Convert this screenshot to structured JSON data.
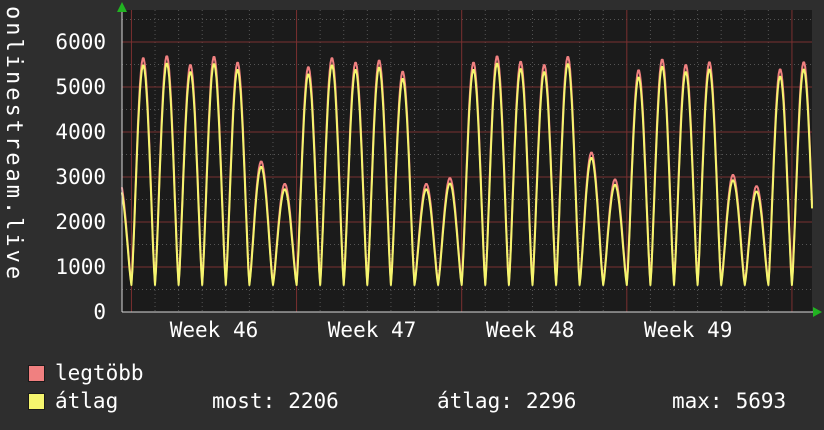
{
  "page": {
    "side_title": "onlinestream.live",
    "colors": {
      "background": "#2e2e2e",
      "plot_background": "#1b1b1b",
      "text": "#ffffff",
      "grid_major": "#7a3030",
      "grid_minor": "#555555",
      "axis": "#d8d8d8",
      "arrow": "#21b321"
    }
  },
  "legend": {
    "items": [
      {
        "label": "legtöbb",
        "color": "#f08080"
      },
      {
        "label": "átlag",
        "color": "#f5f56e"
      }
    ],
    "stats": [
      {
        "label": "most:",
        "value": "2206"
      },
      {
        "label": "átlag:",
        "value": "2296"
      },
      {
        "label": "max:",
        "value": "5693"
      }
    ]
  },
  "chart_data": {
    "type": "line",
    "title": "",
    "xlabel": "",
    "ylabel": "",
    "x_unit": "days",
    "t_start": 0.6,
    "t_end": 29.85,
    "ylim": [
      0,
      6700
    ],
    "yticks": [
      0,
      1000,
      2000,
      3000,
      4000,
      5000,
      6000
    ],
    "x_tick_labels": [
      {
        "label": "Week 46",
        "t": 4.5
      },
      {
        "label": "Week 47",
        "t": 11.2
      },
      {
        "label": "Week 48",
        "t": 17.9
      },
      {
        "label": "Week 49",
        "t": 24.6
      }
    ],
    "week_boundaries_t": [
      1,
      8,
      15,
      22,
      29
    ],
    "minor_y_step": 500,
    "daily_cycle_shape_exponent": 1.3,
    "legend_position": "bottom",
    "grid": true,
    "series": [
      {
        "name": "legtöbb",
        "color": "#f08080",
        "baseline": 640,
        "daily_peaks": [
          2900,
          5650,
          5693,
          5500,
          5680,
          5550,
          3350,
          2850,
          5450,
          5650,
          5550,
          5600,
          5350,
          2850,
          2980,
          5550,
          5690,
          5570,
          5500,
          5680,
          3550,
          2950,
          5380,
          5620,
          5500,
          5560,
          3050,
          2800,
          5400,
          5560
        ]
      },
      {
        "name": "átlag",
        "color": "#f5f56e",
        "baseline": 600,
        "daily_peaks": [
          2780,
          5490,
          5530,
          5340,
          5520,
          5390,
          3230,
          2730,
          5290,
          5490,
          5390,
          5440,
          5190,
          2730,
          2860,
          5390,
          5530,
          5410,
          5340,
          5520,
          3430,
          2830,
          5220,
          5460,
          5340,
          5400,
          2930,
          2680,
          5240,
          5400
        ]
      }
    ],
    "stats": {
      "most": 2206,
      "átlag": 2296,
      "max": 5693
    }
  }
}
